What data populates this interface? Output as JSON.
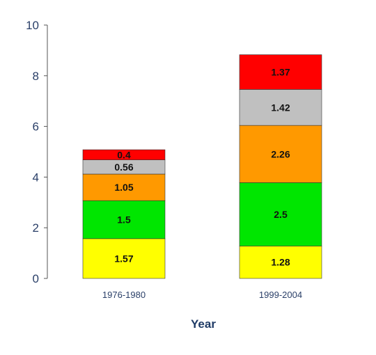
{
  "chart_data": {
    "type": "bar",
    "stacked": true,
    "title": "",
    "xlabel": "Year",
    "ylabel": "",
    "ylim": [
      0,
      10
    ],
    "yticks": [
      0,
      2,
      4,
      6,
      8,
      10
    ],
    "grid": false,
    "legend": "none",
    "categories": [
      "1976-1980",
      "1999-2004"
    ],
    "series": [
      {
        "color": "#ffff00",
        "values": [
          1.57,
          1.28
        ],
        "labels": [
          "1.57",
          "1.28"
        ]
      },
      {
        "color": "#00e600",
        "values": [
          1.5,
          2.5
        ],
        "labels": [
          "1.5",
          "2.5"
        ]
      },
      {
        "color": "#ff9900",
        "values": [
          1.05,
          2.26
        ],
        "labels": [
          "1.05",
          "2.26"
        ]
      },
      {
        "color": "#c0c0c0",
        "values": [
          0.56,
          1.42
        ],
        "labels": [
          "0.56",
          "1.42"
        ]
      },
      {
        "color": "#ff0000",
        "values": [
          0.4,
          1.37
        ],
        "labels": [
          "0.4",
          "1.37"
        ]
      }
    ]
  }
}
